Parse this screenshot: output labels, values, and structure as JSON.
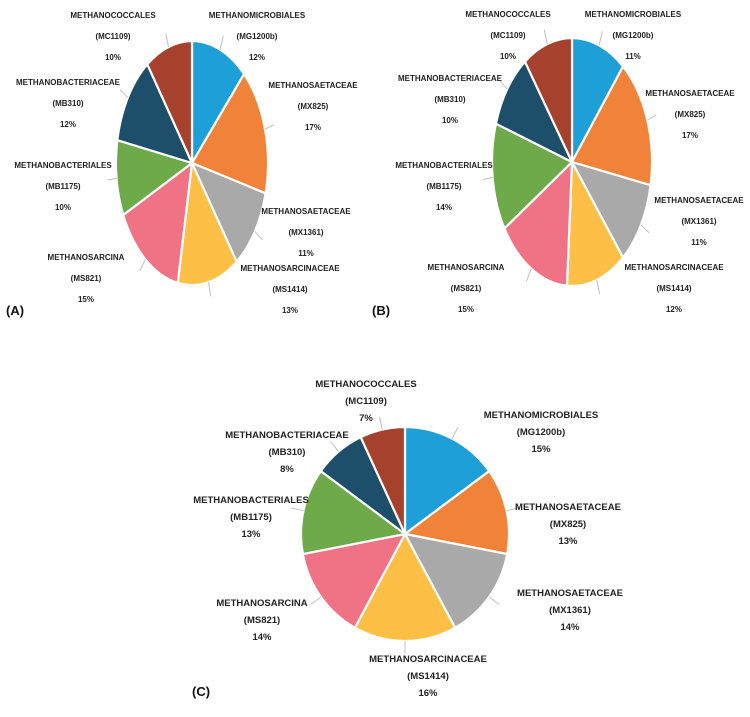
{
  "chart_data": [
    {
      "type": "pie",
      "panel": "(A)",
      "slices": [
        {
          "name": "METHANOMICROBIALES",
          "code": "(MG1200b)",
          "value": 12,
          "label": "12%",
          "color": "#1f9fd8"
        },
        {
          "name": "METHANOSAETACEAE",
          "code": "(MX825)",
          "value": 17,
          "label": "17%",
          "color": "#f0823a"
        },
        {
          "name": "METHANOSAETACEAE",
          "code": "(MX1361)",
          "value": 11,
          "label": "11%",
          "color": "#a9a9a9"
        },
        {
          "name": "METHANOSARCINACEAE",
          "code": "(MS1414)",
          "value": 13,
          "label": "13%",
          "color": "#fdbf45"
        },
        {
          "name": "METHANOSARCINA",
          "code": "(MS821)",
          "value": 15,
          "label": "15%",
          "color": "#f07285"
        },
        {
          "name": "METHANOBACTERIALES",
          "code": "(MB1175)",
          "value": 10,
          "label": "10%",
          "color": "#6faa4a"
        },
        {
          "name": "METHANOBACTERIACEAE",
          "code": "(MB310)",
          "value": 12,
          "label": "12%",
          "color": "#1e4f6a"
        },
        {
          "name": "METHANOCOCCALES",
          "code": "(MC1109)",
          "value": 10,
          "label": "10%",
          "color": "#a5412c"
        }
      ]
    },
    {
      "type": "pie",
      "panel": "(B)",
      "slices": [
        {
          "name": "METHANOMICROBIALES",
          "code": "(MG1200b)",
          "value": 11,
          "label": "11%",
          "color": "#1f9fd8"
        },
        {
          "name": "METHANOSAETACEAE",
          "code": "(MX825)",
          "value": 17,
          "label": "17%",
          "color": "#f0823a"
        },
        {
          "name": "METHANOSAETACEAE",
          "code": "(MX1361)",
          "value": 11,
          "label": "11%",
          "color": "#a9a9a9"
        },
        {
          "name": "METHANOSARCINACEAE",
          "code": "(MS1414)",
          "value": 12,
          "label": "12%",
          "color": "#fdbf45"
        },
        {
          "name": "METHANOSARCINA",
          "code": "(MS821)",
          "value": 15,
          "label": "15%",
          "color": "#f07285"
        },
        {
          "name": "METHANOBACTERIALES",
          "code": "(MB1175)",
          "value": 14,
          "label": "14%",
          "color": "#6faa4a"
        },
        {
          "name": "METHANOBACTERIACEAE",
          "code": "(MB310)",
          "value": 10,
          "label": "10%",
          "color": "#1e4f6a"
        },
        {
          "name": "METHANOCOCCALES",
          "code": "(MC1109)",
          "value": 10,
          "label": "10%",
          "color": "#a5412c"
        }
      ]
    },
    {
      "type": "pie",
      "panel": "(C)",
      "slices": [
        {
          "name": "METHANOMICROBIALES",
          "code": "(MG1200b)",
          "value": 15,
          "label": "15%",
          "color": "#1f9fd8"
        },
        {
          "name": "METHANOSAETACEAE",
          "code": "(MX825)",
          "value": 13,
          "label": "13%",
          "color": "#f0823a"
        },
        {
          "name": "METHANOSAETACEAE",
          "code": "(MX1361)",
          "value": 14,
          "label": "14%",
          "color": "#a9a9a9"
        },
        {
          "name": "METHANOSARCINACEAE",
          "code": "(MS1414)",
          "value": 16,
          "label": "16%",
          "color": "#fdbf45"
        },
        {
          "name": "METHANOSARCINA",
          "code": "(MS821)",
          "value": 14,
          "label": "14%",
          "color": "#f07285"
        },
        {
          "name": "METHANOBACTERIALES",
          "code": "(MB1175)",
          "value": 13,
          "label": "13%",
          "color": "#6faa4a"
        },
        {
          "name": "METHANOBACTERIACEAE",
          "code": "(MB310)",
          "value": 8,
          "label": "8%",
          "color": "#1e4f6a"
        },
        {
          "name": "METHANOCOCCALES",
          "code": "(MC1109)",
          "value": 7,
          "label": "7%",
          "color": "#a5412c"
        }
      ]
    }
  ]
}
